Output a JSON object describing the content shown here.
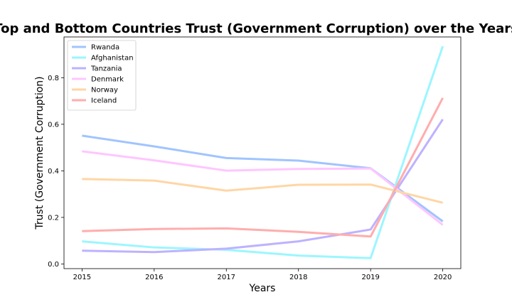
{
  "chart_data": {
    "type": "line",
    "title": "Top and Bottom Countries Trust (Government Corruption) over the Years",
    "xlabel": "Years",
    "ylabel": "Trust (Government Corruption)",
    "x": [
      2015,
      2016,
      2017,
      2018,
      2019,
      2020
    ],
    "xticks": [
      "2015",
      "2016",
      "2017",
      "2018",
      "2019",
      "2020"
    ],
    "yticks": [
      "0.0",
      "0.2",
      "0.4",
      "0.6",
      "0.8"
    ],
    "ylim": [
      -0.02,
      0.975
    ],
    "xlim": [
      2014.75,
      2020.25
    ],
    "grid": false,
    "legend_position": "top-left",
    "series": [
      {
        "name": "Rwanda",
        "color": "#a0c4ff",
        "values": [
          0.551,
          0.505,
          0.455,
          0.444,
          0.411,
          0.183
        ]
      },
      {
        "name": "Afghanistan",
        "color": "#9bf6ff",
        "values": [
          0.097,
          0.071,
          0.061,
          0.036,
          0.025,
          0.935
        ]
      },
      {
        "name": "Tanzania",
        "color": "#bdb2ff",
        "values": [
          0.057,
          0.051,
          0.066,
          0.097,
          0.148,
          0.621
        ]
      },
      {
        "name": "Denmark",
        "color": "#ffc6ff",
        "values": [
          0.484,
          0.445,
          0.401,
          0.408,
          0.41,
          0.168
        ]
      },
      {
        "name": "Norway",
        "color": "#ffd6a5",
        "values": [
          0.365,
          0.358,
          0.315,
          0.34,
          0.341,
          0.263
        ]
      },
      {
        "name": "Iceland",
        "color": "#ffadad",
        "values": [
          0.141,
          0.15,
          0.153,
          0.138,
          0.118,
          0.713
        ]
      }
    ]
  }
}
